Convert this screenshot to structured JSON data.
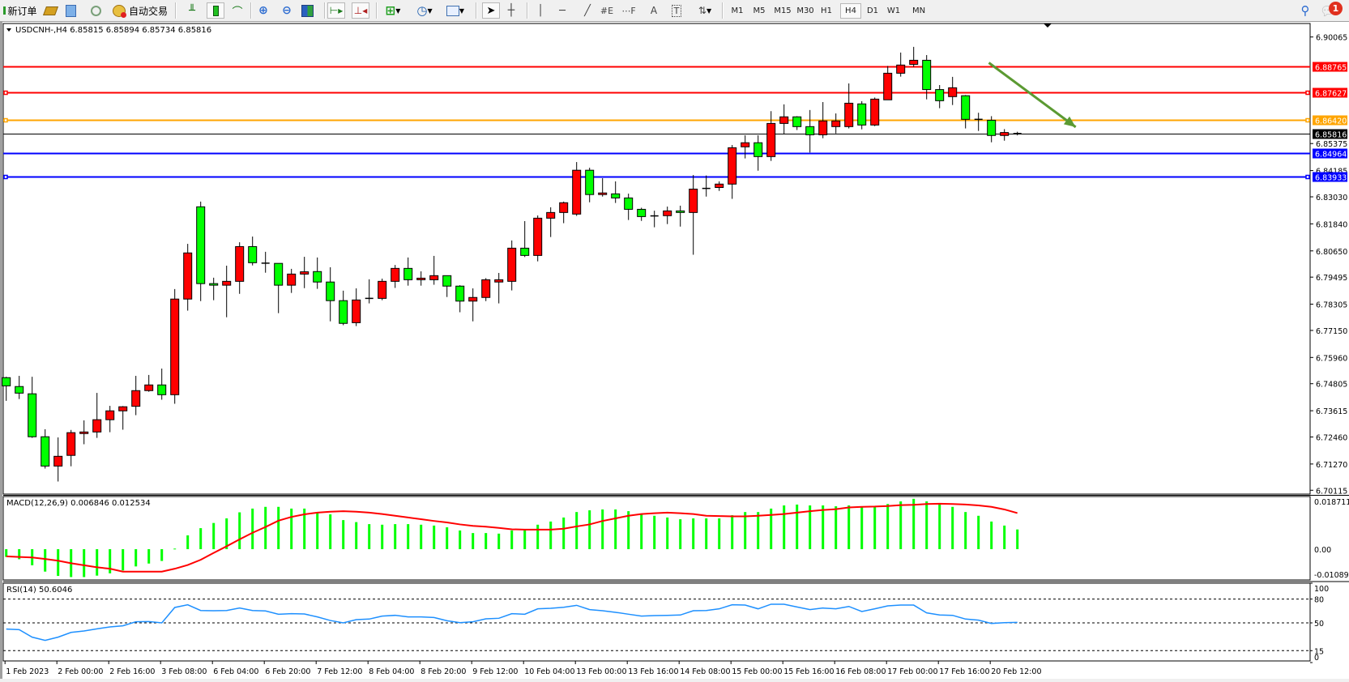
{
  "toolbar": {
    "new_order_label": "新订单",
    "auto_trading_label": "自动交易",
    "timeframes": [
      "M1",
      "M5",
      "M15",
      "M30",
      "H1",
      "H4",
      "D1",
      "W1",
      "MN"
    ],
    "selected_timeframe": "H4",
    "notification_count": "1",
    "icons": [
      "new-order-icon",
      "market-watch-icon",
      "navigator-icon",
      "signals-icon",
      "auto-trading-icon",
      "bar-chart-icon",
      "candlestick-icon",
      "line-chart-icon",
      "zoom-in-icon",
      "zoom-out-icon",
      "tile-windows-icon",
      "chart-shift-icon",
      "autoscroll-icon",
      "indicators-icon",
      "periods-icon",
      "templates-icon",
      "cursor-icon",
      "crosshair-icon",
      "vertical-line-icon",
      "horizontal-line-icon",
      "trendline-icon",
      "fibonacci-icon",
      "fibo-fan-icon",
      "text-icon",
      "text-label-icon",
      "arrows-icon",
      "search-icon",
      "notification-icon"
    ]
  },
  "chart": {
    "header": "USDCNH-,H4  6.85815 6.85894 6.85734 6.85816",
    "symbol": "USDCNH-",
    "period": "H4",
    "ohlc_current": {
      "open": 6.85815,
      "high": 6.85894,
      "low": 6.85734,
      "close": 6.85816
    },
    "colors": {
      "bull": "#ff0000",
      "bear": "#00ff00",
      "outline": "#000000",
      "macd_hist": "#00ff00",
      "macd_signal": "#ff0000",
      "rsi": "#1e90ff",
      "arrow": "#5b9a32"
    }
  },
  "chart_data": [
    {
      "type": "candlestick",
      "ohlc_order": [
        "open",
        "high",
        "low",
        "close"
      ],
      "ohlc": [
        [
          6.7507,
          6.7511,
          6.7405,
          6.7471
        ],
        [
          6.7468,
          6.7515,
          6.7413,
          6.7439
        ],
        [
          6.7436,
          6.7511,
          6.7242,
          6.7247
        ],
        [
          6.7247,
          6.728,
          6.7107,
          6.7118
        ],
        [
          6.7118,
          6.7244,
          6.705,
          6.7161
        ],
        [
          6.7165,
          6.7277,
          6.7117,
          6.7265
        ],
        [
          6.7261,
          6.7319,
          6.7214,
          6.7268
        ],
        [
          6.7268,
          6.744,
          6.7242,
          6.7322
        ],
        [
          6.7322,
          6.7383,
          6.7267,
          6.7361
        ],
        [
          6.7361,
          6.7382,
          6.7278,
          6.7379
        ],
        [
          6.7381,
          6.7515,
          6.7342,
          6.745
        ],
        [
          6.745,
          6.7519,
          6.7445,
          6.7475
        ],
        [
          6.7475,
          6.7547,
          6.741,
          6.7432
        ],
        [
          6.7432,
          6.7897,
          6.7392,
          6.7853
        ],
        [
          6.7853,
          6.8096,
          6.7802,
          6.8056
        ],
        [
          6.8259,
          6.8282,
          6.7844,
          6.7921
        ],
        [
          6.7921,
          6.7947,
          6.7848,
          6.7914
        ],
        [
          6.7914,
          6.8,
          6.7773,
          6.7931
        ],
        [
          6.7931,
          6.8103,
          6.7876,
          6.8084
        ],
        [
          6.8084,
          6.8128,
          6.8001,
          6.8013
        ],
        [
          6.8011,
          6.8061,
          6.7969,
          6.801
        ],
        [
          6.801,
          6.801,
          6.7791,
          6.7914
        ],
        [
          6.7914,
          6.7986,
          6.788,
          6.7963
        ],
        [
          6.7963,
          6.8039,
          6.7901,
          6.7973
        ],
        [
          6.7974,
          6.8036,
          6.7898,
          6.7928
        ],
        [
          6.7928,
          6.7993,
          6.7755,
          6.7846
        ],
        [
          6.7846,
          6.789,
          6.7738,
          6.7746
        ],
        [
          6.7749,
          6.79,
          6.7734,
          6.7849
        ],
        [
          6.7856,
          6.794,
          6.7834,
          6.7856
        ],
        [
          6.7856,
          6.7943,
          6.7848,
          6.7931
        ],
        [
          6.7931,
          6.8003,
          6.7902,
          6.7988
        ],
        [
          6.7988,
          6.8036,
          6.7912,
          6.7938
        ],
        [
          6.7938,
          6.7975,
          6.7912,
          6.7945
        ],
        [
          6.7938,
          6.8043,
          6.7916,
          6.7956
        ],
        [
          6.7956,
          6.7956,
          6.7862,
          6.791
        ],
        [
          6.791,
          6.7914,
          6.7795,
          6.7844
        ],
        [
          6.7844,
          6.79,
          6.7755,
          6.786
        ],
        [
          6.786,
          6.7945,
          6.7844,
          6.7938
        ],
        [
          6.7928,
          6.7968,
          6.7834,
          6.7938
        ],
        [
          6.7931,
          6.8111,
          6.7891,
          6.8077
        ],
        [
          6.8077,
          6.8196,
          6.8038,
          6.8045
        ],
        [
          6.8045,
          6.8221,
          6.8019,
          6.8209
        ],
        [
          6.8209,
          6.8257,
          6.8126,
          6.8234
        ],
        [
          6.8234,
          6.8282,
          6.8187,
          6.8277
        ],
        [
          6.8227,
          6.8456,
          6.8219,
          6.842
        ],
        [
          6.842,
          6.8431,
          6.8279,
          6.8313
        ],
        [
          6.8313,
          6.8385,
          6.8304,
          6.832
        ],
        [
          6.8316,
          6.8371,
          6.8276,
          6.8298
        ],
        [
          6.8298,
          6.8317,
          6.8201,
          6.8248
        ],
        [
          6.8248,
          6.8255,
          6.8197,
          6.8216
        ],
        [
          6.8219,
          6.8242,
          6.8169,
          6.8219
        ],
        [
          6.822,
          6.826,
          6.8183,
          6.8241
        ],
        [
          6.8241,
          6.8264,
          6.8172,
          6.8234
        ],
        [
          6.8234,
          6.8399,
          6.8048,
          6.8337
        ],
        [
          6.834,
          6.8397,
          6.8304,
          6.834
        ],
        [
          6.8344,
          6.8371,
          6.8329,
          6.8359
        ],
        [
          6.8359,
          6.8531,
          6.8294,
          6.8519
        ],
        [
          6.8523,
          6.8574,
          6.8472,
          6.8541
        ],
        [
          6.8541,
          6.8574,
          6.8418,
          6.848
        ],
        [
          6.848,
          6.868,
          6.8461,
          6.8626
        ],
        [
          6.8626,
          6.871,
          6.8579,
          6.8655
        ],
        [
          6.8655,
          6.8658,
          6.8597,
          6.8612
        ],
        [
          6.8612,
          6.8685,
          6.8498,
          6.8576
        ],
        [
          6.8576,
          6.872,
          6.8561,
          6.8637
        ],
        [
          6.8612,
          6.867,
          6.8582,
          6.8637
        ],
        [
          6.8612,
          6.8802,
          6.8604,
          6.8715
        ],
        [
          6.8712,
          6.8724,
          6.86,
          6.8619
        ],
        [
          6.8619,
          6.874,
          6.8614,
          6.8733
        ],
        [
          6.873,
          6.8879,
          6.873,
          6.8847
        ],
        [
          6.8847,
          6.8938,
          6.8832,
          6.8883
        ],
        [
          6.8886,
          6.8963,
          6.8875,
          6.8904
        ],
        [
          6.8904,
          6.8927,
          6.8732,
          6.8775
        ],
        [
          6.8775,
          6.8795,
          6.8693,
          6.8726
        ],
        [
          6.8744,
          6.8831,
          6.8707,
          6.8783
        ],
        [
          6.8748,
          6.8751,
          6.8604,
          6.8644
        ],
        [
          6.8644,
          6.8673,
          6.8593,
          6.8644
        ],
        [
          6.864,
          6.8658,
          6.8543,
          6.8573
        ],
        [
          6.8573,
          6.8601,
          6.855,
          6.8586
        ],
        [
          6.85815,
          6.85894,
          6.85734,
          6.85816
        ]
      ],
      "ylim": [
        6.70115,
        6.90065
      ],
      "y_tick_labels": [
        "6.90065",
        "6.85375",
        "6.84185",
        "6.83030",
        "6.81840",
        "6.80650",
        "6.79495",
        "6.78305",
        "6.77150",
        "6.75960",
        "6.74805",
        "6.73615",
        "6.72460",
        "6.71270",
        "6.70115"
      ],
      "x_tick_labels": [
        "1 Feb 2023",
        "2 Feb 00:00",
        "2 Feb 16:00",
        "3 Feb 08:00",
        "6 Feb 04:00",
        "6 Feb 20:00",
        "7 Feb 12:00",
        "8 Feb 04:00",
        "8 Feb 20:00",
        "9 Feb 12:00",
        "10 Feb 04:00",
        "13 Feb 00:00",
        "13 Feb 16:00",
        "14 Feb 08:00",
        "15 Feb 00:00",
        "15 Feb 16:00",
        "16 Feb 08:00",
        "17 Feb 00:00",
        "17 Feb 16:00",
        "20 Feb 12:00"
      ],
      "x_tick_every_bars": 4,
      "horizontal_lines": [
        {
          "price": 6.88765,
          "label": "6.88765",
          "color": "#ff0000"
        },
        {
          "price": 6.87627,
          "label": "6.87627",
          "color": "#ff0000",
          "selected": true
        },
        {
          "price": 6.8642,
          "label": "6.86420",
          "color": "#ffa500",
          "selected": true
        },
        {
          "price": 6.85816,
          "label": "6.85816",
          "color": "#000000",
          "thin": true
        },
        {
          "price": 6.84964,
          "label": "6.84964",
          "color": "#0000ff"
        },
        {
          "price": 6.83933,
          "label": "6.83933",
          "color": "#0000ff",
          "selected": true
        }
      ],
      "arrow": {
        "from": {
          "bar": 75.8,
          "price": 6.8893
        },
        "to": {
          "bar": 82.5,
          "price": 6.861
        }
      }
    },
    {
      "type": "bar+line",
      "title": "MACD(12,26,9) 0.006846 0.012534",
      "y_tick_labels": [
        "0.018711",
        "0.00",
        "-0.010896"
      ],
      "ylim": [
        -0.010896,
        0.018711
      ],
      "macd": [
        -0.0027,
        -0.0035,
        -0.0056,
        -0.0078,
        -0.0093,
        -0.0097,
        -0.0097,
        -0.0092,
        -0.0084,
        -0.0074,
        -0.006,
        -0.005,
        -0.0041,
        0.0002,
        0.0048,
        0.0073,
        0.0091,
        0.0107,
        0.0128,
        0.0141,
        0.0147,
        0.0147,
        0.0141,
        0.0141,
        0.0128,
        0.0121,
        0.0101,
        0.0094,
        0.0087,
        0.0085,
        0.0087,
        0.0087,
        0.0085,
        0.0082,
        0.0076,
        0.0065,
        0.0056,
        0.0056,
        0.0054,
        0.0065,
        0.0068,
        0.0085,
        0.0096,
        0.011,
        0.0129,
        0.0135,
        0.0138,
        0.0138,
        0.0132,
        0.0124,
        0.0116,
        0.011,
        0.0104,
        0.0107,
        0.0107,
        0.0107,
        0.0118,
        0.0129,
        0.0129,
        0.0141,
        0.0152,
        0.0155,
        0.0152,
        0.0152,
        0.0149,
        0.0152,
        0.0147,
        0.0147,
        0.0157,
        0.0166,
        0.0175,
        0.0166,
        0.0157,
        0.0147,
        0.0129,
        0.0116,
        0.0096,
        0.0082,
        0.006846
      ],
      "signal": [
        -0.0025,
        -0.0027,
        -0.0029,
        -0.0034,
        -0.004,
        -0.0049,
        -0.0056,
        -0.0063,
        -0.0068,
        -0.0078,
        -0.0078,
        -0.0078,
        -0.0078,
        -0.0068,
        -0.0055,
        -0.0037,
        -0.0013,
        0.001,
        0.0034,
        0.0057,
        0.0077,
        0.0099,
        0.0112,
        0.0121,
        0.0127,
        0.013,
        0.0132,
        0.013,
        0.0127,
        0.0122,
        0.0116,
        0.011,
        0.0104,
        0.0098,
        0.0093,
        0.0086,
        0.0081,
        0.0078,
        0.0074,
        0.0069,
        0.0068,
        0.0068,
        0.0068,
        0.0071,
        0.0079,
        0.0086,
        0.0098,
        0.0107,
        0.0116,
        0.0122,
        0.0125,
        0.0127,
        0.0125,
        0.0122,
        0.0116,
        0.0115,
        0.0114,
        0.0114,
        0.0116,
        0.0119,
        0.0122,
        0.0127,
        0.0132,
        0.0136,
        0.0139,
        0.0145,
        0.0147,
        0.0148,
        0.015,
        0.0153,
        0.0154,
        0.0157,
        0.0158,
        0.0157,
        0.0155,
        0.0152,
        0.0147,
        0.0138,
        0.012534
      ]
    },
    {
      "type": "line",
      "title": "RSI(14) 50.6046",
      "y_tick_labels": [
        "100",
        "80",
        "50",
        "15",
        "0"
      ],
      "levels": [
        80,
        50,
        15
      ],
      "ylim": [
        0,
        100
      ],
      "values": [
        42.2,
        41.5,
        32,
        27.9,
        32,
        38,
        39.8,
        42.5,
        44.9,
        46.3,
        51.4,
        51.7,
        50,
        69.4,
        72.8,
        65.6,
        65.3,
        65.6,
        68.7,
        65.6,
        65,
        60.9,
        61.6,
        61.2,
        57.5,
        53,
        50,
        54.1,
        54.8,
        58.5,
        59.5,
        57.5,
        57.5,
        56.8,
        52.7,
        50.3,
        51.4,
        55.1,
        55.8,
        61.6,
        60.9,
        67.7,
        68.4,
        69.7,
        72.1,
        66.7,
        65.3,
        63.3,
        60.9,
        58.5,
        59.2,
        59.5,
        59.9,
        65.3,
        65.6,
        67.7,
        72.8,
        72.4,
        67.7,
        73.5,
        73.5,
        70,
        66.7,
        68.7,
        67.7,
        70.7,
        64.3,
        67.7,
        71.4,
        72.4,
        72.4,
        62.6,
        59.9,
        59.5,
        54.8,
        53.4,
        49.3,
        50.3,
        50.6046
      ]
    }
  ]
}
